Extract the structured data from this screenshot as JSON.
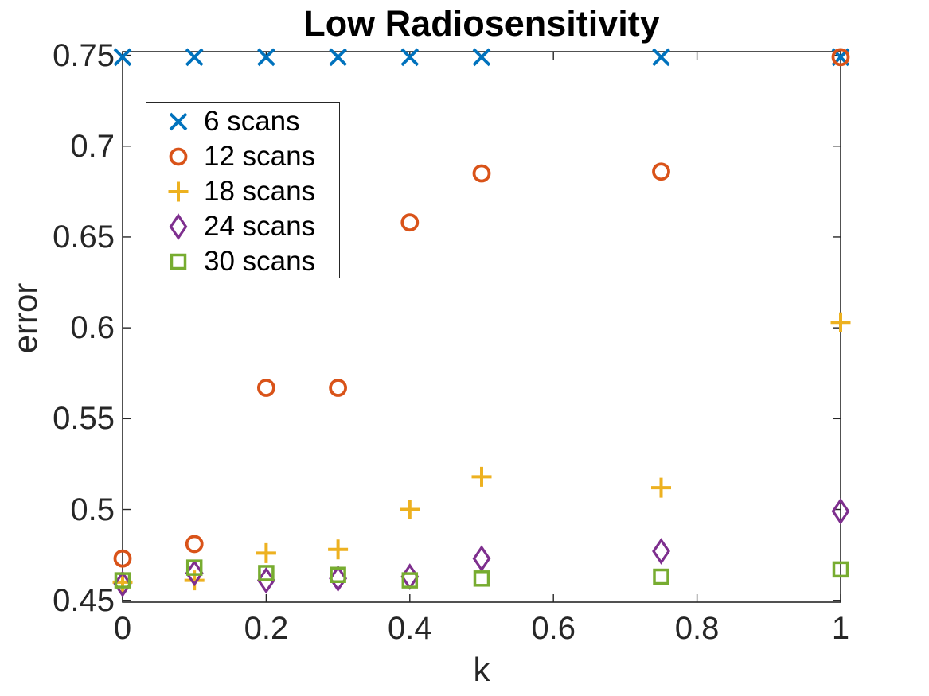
{
  "title": "Low Radiosensitivity",
  "colors": {
    "background": "#FFFFFF",
    "axis": "#262626",
    "title_text": "#000000",
    "series_blue": "#0072BD",
    "series_orange": "#D95319",
    "series_yellow": "#EDB120",
    "series_purple": "#7E2F8E",
    "series_green": "#77AC30"
  },
  "chart_data": {
    "type": "scatter",
    "title": "Low Radiosensitivity",
    "xlabel": "k",
    "ylabel": "error",
    "grid": false,
    "legend_position": "upper-left-inside",
    "xlim": [
      0,
      1
    ],
    "ylim": [
      0.449,
      0.752
    ],
    "xticks": [
      0,
      0.2,
      0.4,
      0.6,
      0.8,
      1
    ],
    "xtick_labels": [
      "0",
      "0.2",
      "0.4",
      "0.6",
      "0.8",
      "1"
    ],
    "yticks": [
      0.45,
      0.5,
      0.55,
      0.6,
      0.65,
      0.7,
      0.75
    ],
    "ytick_labels": [
      "0.45",
      "0.5",
      "0.55",
      "0.6",
      "0.65",
      "0.7",
      "0.75"
    ],
    "x": [
      0,
      0.1,
      0.2,
      0.3,
      0.4,
      0.5,
      0.75,
      1
    ],
    "series": [
      {
        "name": "6 scans",
        "marker": "x",
        "color": "#0072BD",
        "values": [
          0.749,
          0.749,
          0.749,
          0.749,
          0.749,
          0.749,
          0.749,
          0.749
        ]
      },
      {
        "name": "12 scans",
        "marker": "circle",
        "color": "#D95319",
        "values": [
          0.473,
          0.481,
          0.567,
          0.567,
          0.658,
          0.685,
          0.686,
          0.749
        ]
      },
      {
        "name": "18 scans",
        "marker": "plus",
        "color": "#EDB120",
        "values": [
          0.46,
          0.461,
          0.476,
          0.478,
          0.5,
          0.518,
          0.512,
          0.603
        ]
      },
      {
        "name": "24 scans",
        "marker": "diamond",
        "color": "#7E2F8E",
        "values": [
          0.459,
          0.465,
          0.461,
          0.462,
          0.463,
          0.473,
          0.477,
          0.499
        ]
      },
      {
        "name": "30 scans",
        "marker": "square",
        "color": "#77AC30",
        "values": [
          0.461,
          0.468,
          0.465,
          0.464,
          0.461,
          0.462,
          0.463,
          0.467
        ]
      }
    ]
  }
}
